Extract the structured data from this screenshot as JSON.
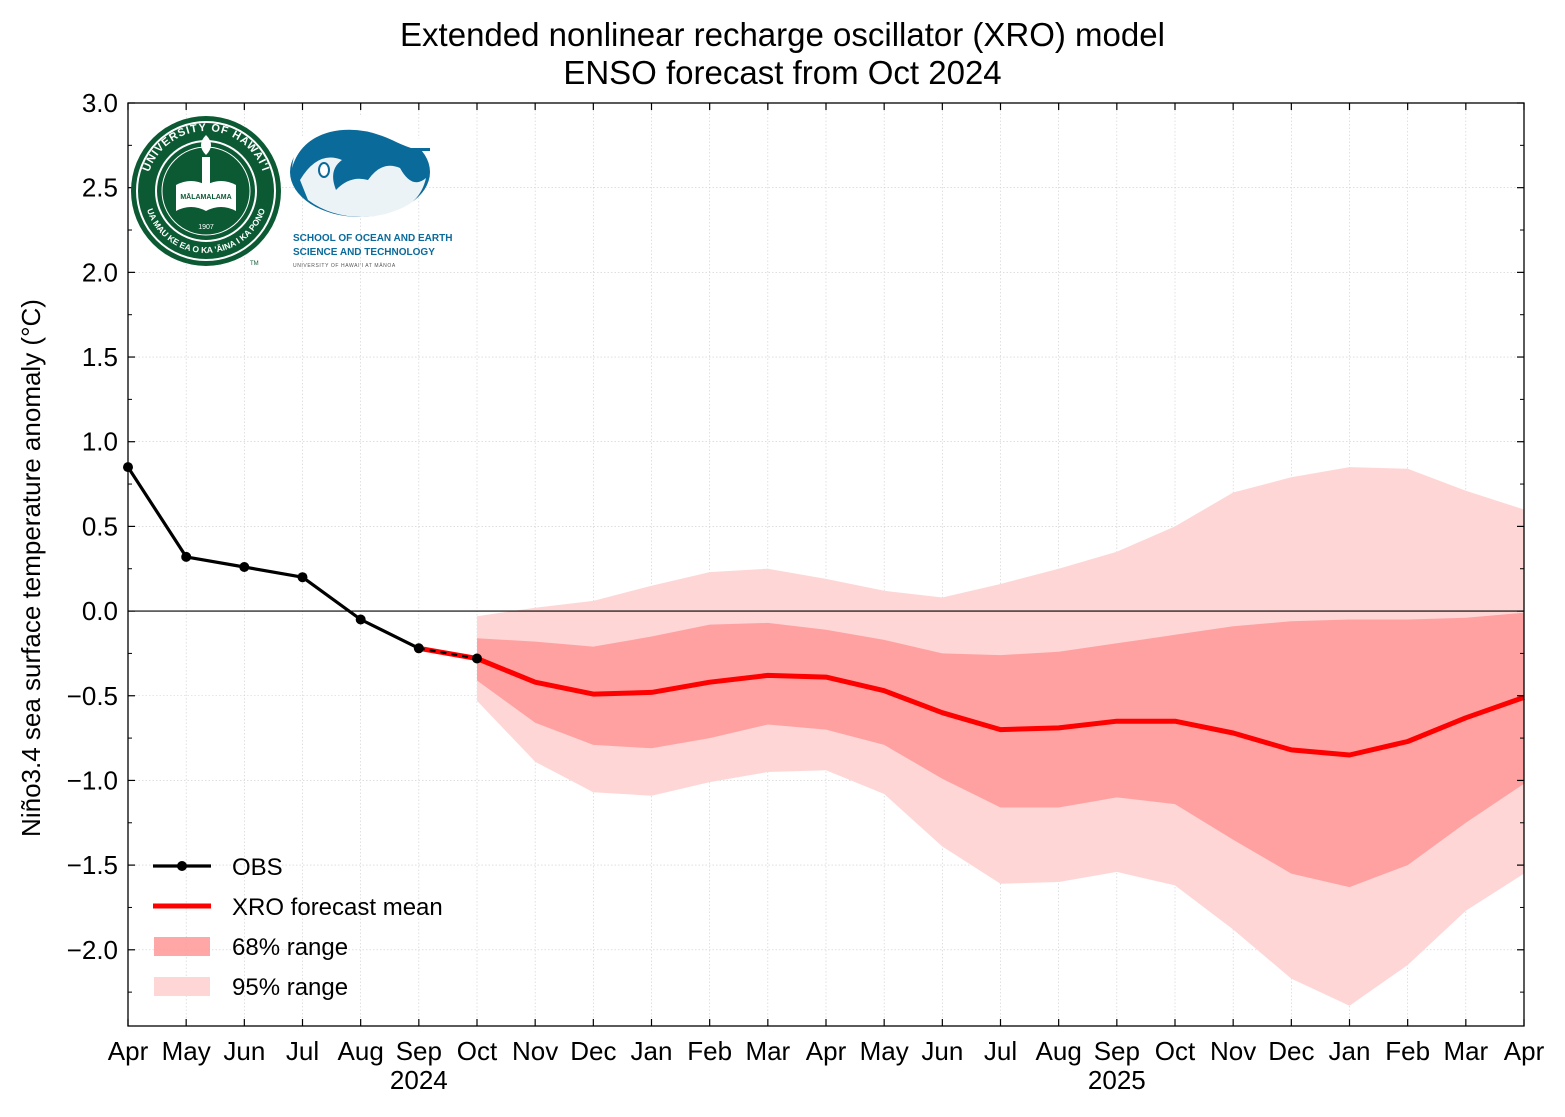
{
  "chart_data": {
    "type": "line",
    "title": "Extended nonlinear recharge oscillator (XRO) model",
    "subtitle": "ENSO forecast from Oct 2024",
    "xlabel": "",
    "ylabel": "Niño3.4 sea surface temperature anomaly (°C)",
    "ylim": [
      -2.45,
      3.0
    ],
    "yticks": [
      "−2.0",
      "−1.5",
      "−1.0",
      "−0.5",
      "0.0",
      "0.5",
      "1.0",
      "1.5",
      "2.0",
      "2.5",
      "3.0"
    ],
    "x": [
      "2024-04",
      "2024-05",
      "2024-06",
      "2024-07",
      "2024-08",
      "2024-09",
      "2024-10",
      "2024-11",
      "2024-12",
      "2025-01",
      "2025-02",
      "2025-03",
      "2025-04",
      "2025-05",
      "2025-06",
      "2025-07",
      "2025-08",
      "2025-09",
      "2025-10",
      "2025-11",
      "2025-12",
      "2026-01",
      "2026-02",
      "2026-03",
      "2026-04"
    ],
    "xticks": [
      "Apr",
      "May",
      "Jun",
      "Jul",
      "Aug",
      "Sep",
      "Oct",
      "Nov",
      "Dec",
      "Jan",
      "Feb",
      "Mar",
      "Apr",
      "May",
      "Jun",
      "Jul",
      "Aug",
      "Sep",
      "Oct",
      "Nov",
      "Dec",
      "Jan",
      "Feb",
      "Mar",
      "Apr"
    ],
    "year_labels": [
      {
        "label": "2024",
        "at": "2024-09"
      },
      {
        "label": "2025",
        "at": "2025-09"
      }
    ],
    "grid": true,
    "legend_position": "lower-left",
    "series": [
      {
        "name": "OBS",
        "kind": "line-markers",
        "color": "#000000",
        "x": [
          "2024-04",
          "2024-05",
          "2024-06",
          "2024-07",
          "2024-08",
          "2024-09",
          "2024-10"
        ],
        "values": [
          0.85,
          0.32,
          0.26,
          0.2,
          -0.05,
          -0.22,
          -0.28
        ]
      },
      {
        "name": "XRO forecast mean",
        "kind": "line",
        "color": "#ff0000",
        "x": [
          "2024-09",
          "2024-10",
          "2024-11",
          "2024-12",
          "2025-01",
          "2025-02",
          "2025-03",
          "2025-04",
          "2025-05",
          "2025-06",
          "2025-07",
          "2025-08",
          "2025-09",
          "2025-10",
          "2025-11",
          "2025-12",
          "2026-01",
          "2026-02",
          "2026-03",
          "2026-04"
        ],
        "values": [
          -0.22,
          -0.28,
          -0.42,
          -0.49,
          -0.48,
          -0.42,
          -0.38,
          -0.39,
          -0.47,
          -0.6,
          -0.7,
          -0.69,
          -0.65,
          -0.65,
          -0.72,
          -0.82,
          -0.85,
          -0.77,
          -0.63,
          -0.51
        ]
      },
      {
        "name": "68% range",
        "kind": "band",
        "color": "#ff9898",
        "x": [
          "2024-10",
          "2024-11",
          "2024-12",
          "2025-01",
          "2025-02",
          "2025-03",
          "2025-04",
          "2025-05",
          "2025-06",
          "2025-07",
          "2025-08",
          "2025-09",
          "2025-10",
          "2025-11",
          "2025-12",
          "2026-01",
          "2026-02",
          "2026-03",
          "2026-04"
        ],
        "upper": [
          -0.16,
          -0.18,
          -0.21,
          -0.15,
          -0.08,
          -0.07,
          -0.11,
          -0.17,
          -0.25,
          -0.26,
          -0.24,
          -0.19,
          -0.14,
          -0.09,
          -0.06,
          -0.05,
          -0.05,
          -0.04,
          -0.01
        ],
        "lower": [
          -0.41,
          -0.66,
          -0.79,
          -0.81,
          -0.75,
          -0.67,
          -0.7,
          -0.79,
          -0.99,
          -1.16,
          -1.16,
          -1.1,
          -1.14,
          -1.35,
          -1.55,
          -1.63,
          -1.5,
          -1.25,
          -1.02
        ]
      },
      {
        "name": "95% range",
        "kind": "band",
        "color": "#ffd6d6",
        "x": [
          "2024-10",
          "2024-11",
          "2024-12",
          "2025-01",
          "2025-02",
          "2025-03",
          "2025-04",
          "2025-05",
          "2025-06",
          "2025-07",
          "2025-08",
          "2025-09",
          "2025-10",
          "2025-11",
          "2025-12",
          "2026-01",
          "2026-02",
          "2026-03",
          "2026-04"
        ],
        "upper": [
          -0.03,
          0.02,
          0.06,
          0.15,
          0.23,
          0.25,
          0.19,
          0.12,
          0.08,
          0.16,
          0.25,
          0.35,
          0.5,
          0.7,
          0.79,
          0.85,
          0.84,
          0.71,
          0.6
        ],
        "lower": [
          -0.53,
          -0.89,
          -1.07,
          -1.09,
          -1.01,
          -0.95,
          -0.94,
          -1.08,
          -1.39,
          -1.61,
          -1.6,
          -1.54,
          -1.62,
          -1.88,
          -2.17,
          -2.33,
          -2.09,
          -1.77,
          -1.55
        ]
      }
    ],
    "logos": [
      {
        "name": "university-of-hawaii-seal",
        "ring_text_top": "UNIVERSITY OF HAWAI'I",
        "ring_text_bottom": "UA MAU KE EA O KA 'ĀINA I KA PONO",
        "inner_text": "MĀLAMALAMA",
        "year": "1907",
        "mark": "TM"
      },
      {
        "name": "soest-logo",
        "line1": "SCHOOL OF OCEAN AND EARTH",
        "line2": "SCIENCE AND TECHNOLOGY",
        "line3": "UNIVERSITY OF HAWAI'I AT MĀNOA"
      }
    ]
  }
}
